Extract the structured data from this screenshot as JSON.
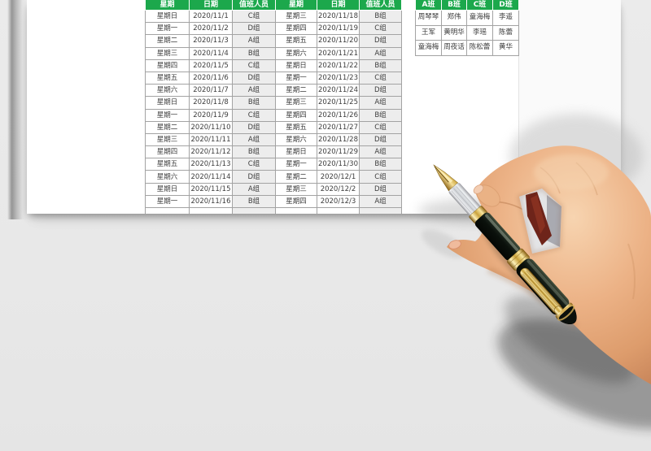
{
  "page": {
    "description": "Duty roster spreadsheet preview on white paper with hand holding fountain pen",
    "background": "#e9e9e9",
    "paper_color": "#ffffff"
  },
  "colors": {
    "header_green": "#1ca84c",
    "grid_border": "#a3a3a3",
    "cell_text": "#3d3d3d",
    "duty_cell_bg": "#ededed"
  },
  "main_table": {
    "headers": [
      "星期",
      "日期",
      "值班人员",
      "星期",
      "日期",
      "值班人员"
    ],
    "rows": [
      [
        "星期日",
        "2020/11/1",
        "C组",
        "星期三",
        "2020/11/18",
        "B组"
      ],
      [
        "星期一",
        "2020/11/2",
        "D组",
        "星期四",
        "2020/11/19",
        "C组"
      ],
      [
        "星期二",
        "2020/11/3",
        "A组",
        "星期五",
        "2020/11/20",
        "D组"
      ],
      [
        "星期三",
        "2020/11/4",
        "B组",
        "星期六",
        "2020/11/21",
        "A组"
      ],
      [
        "星期四",
        "2020/11/5",
        "C组",
        "星期日",
        "2020/11/22",
        "B组"
      ],
      [
        "星期五",
        "2020/11/6",
        "D组",
        "星期一",
        "2020/11/23",
        "C组"
      ],
      [
        "星期六",
        "2020/11/7",
        "A组",
        "星期二",
        "2020/11/24",
        "D组"
      ],
      [
        "星期日",
        "2020/11/8",
        "B组",
        "星期三",
        "2020/11/25",
        "A组"
      ],
      [
        "星期一",
        "2020/11/9",
        "C组",
        "星期四",
        "2020/11/26",
        "B组"
      ],
      [
        "星期二",
        "2020/11/10",
        "D组",
        "星期五",
        "2020/11/27",
        "C组"
      ],
      [
        "星期三",
        "2020/11/11",
        "A组",
        "星期六",
        "2020/11/28",
        "D组"
      ],
      [
        "星期四",
        "2020/11/12",
        "B组",
        "星期日",
        "2020/11/29",
        "A组"
      ],
      [
        "星期五",
        "2020/11/13",
        "C组",
        "星期一",
        "2020/11/30",
        "B组"
      ],
      [
        "星期六",
        "2020/11/14",
        "D组",
        "星期二",
        "2020/12/1",
        "C组"
      ],
      [
        "星期日",
        "2020/11/15",
        "A组",
        "星期三",
        "2020/12/2",
        "D组"
      ],
      [
        "星期一",
        "2020/11/16",
        "B组",
        "星期四",
        "2020/12/3",
        "A组"
      ]
    ],
    "partial_row": [
      "",
      "",
      "",
      "",
      "",
      ""
    ]
  },
  "side_table": {
    "headers": [
      "A班",
      "B班",
      "C班",
      "D班"
    ],
    "rows": [
      [
        "周琴琴",
        "郑伟",
        "童海梅",
        "李遥"
      ],
      [
        "王军",
        "黄明华",
        "李瑶",
        "陈蕾"
      ],
      [
        "童海梅",
        "周夜话",
        "陈松蕾",
        "黄华"
      ]
    ]
  },
  "illustration": {
    "subject": "right-hand-holding-fountain-pen",
    "pen_barrel_color": "#10160f",
    "pen_trim_color": "#cda344",
    "pen_grip_color": "#dfe1e4",
    "seal_red_color": "#6e241a",
    "skin_color": "#ecb286"
  }
}
